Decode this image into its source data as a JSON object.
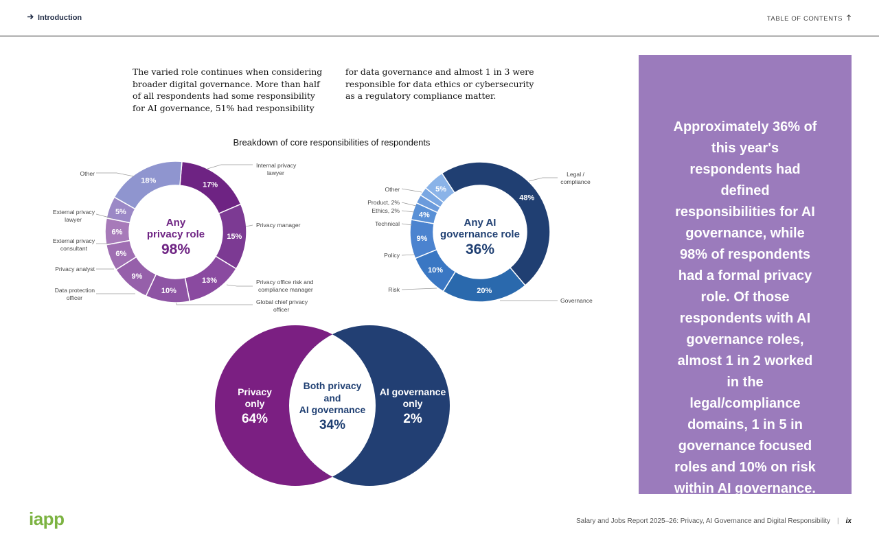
{
  "header": {
    "back_link": "Introduction",
    "toc_label": "TABLE OF CONTENTS"
  },
  "intro": {
    "col1": "The varied role continues when considering broader digital governance. More than half of all respondents had some responsibility for AI governance, 51% had responsibility",
    "col2": "for data governance and almost 1 in 3 were responsible for data ethics or cybersecurity as a regulatory compliance matter."
  },
  "chart_data": [
    {
      "type": "donut",
      "title": "Breakdown of core responsibilities of respondents",
      "center_label_line1": "Any",
      "center_label_line2": "privacy role",
      "center_value": "98%",
      "series": [
        {
          "name": "Internal privacy lawyer",
          "value": 17,
          "label": "17%",
          "color": "#6e2383"
        },
        {
          "name": "Privacy manager",
          "value": 15,
          "label": "15%",
          "color": "#7c3a93"
        },
        {
          "name": "Privacy office risk and compliance manager",
          "value": 13,
          "label": "13%",
          "color": "#8a4aa0"
        },
        {
          "name": "Global chief privacy officer",
          "value": 10,
          "label": "10%",
          "color": "#8e54a4"
        },
        {
          "name": "Data protection officer",
          "value": 9,
          "label": "9%",
          "color": "#9660aa"
        },
        {
          "name": "Privacy analyst",
          "value": 6,
          "label": "6%",
          "color": "#9f6eb2"
        },
        {
          "name": "External privacy consultant",
          "value": 6,
          "label": "6%",
          "color": "#a77ab9"
        },
        {
          "name": "External privacy lawyer",
          "value": 5,
          "label": "5%",
          "color": "#9b88c6"
        },
        {
          "name": "Other",
          "value": 18,
          "label": "18%",
          "color": "#8f95cf"
        }
      ]
    },
    {
      "type": "donut",
      "center_label_line1": "Any AI",
      "center_label_line2": "governance role",
      "center_value": "36%",
      "series": [
        {
          "name": "Legal / compliance",
          "value": 48,
          "label": "48%",
          "color": "#203f72"
        },
        {
          "name": "Governance",
          "value": 20,
          "label": "20%",
          "color": "#2a69ad"
        },
        {
          "name": "Risk",
          "value": 10,
          "label": "10%",
          "color": "#3a77c3"
        },
        {
          "name": "Policy",
          "value": 9,
          "label": "9%",
          "color": "#4b83cf"
        },
        {
          "name": "Technical",
          "value": 4,
          "label": "4%",
          "color": "#5990d6"
        },
        {
          "name": "Ethics, 2%",
          "value": 2,
          "label": "",
          "color": "#6b9bdc"
        },
        {
          "name": "Product, 2%",
          "value": 2,
          "label": "",
          "color": "#7aa7e2"
        },
        {
          "name": "Other",
          "value": 5,
          "label": "5%",
          "color": "#8ab3e8"
        }
      ]
    },
    {
      "type": "venn",
      "left": {
        "line1": "Privacy",
        "line2": "only",
        "value": "64%",
        "color": "#7b1f82"
      },
      "overlap": {
        "line1": "Both privacy",
        "line2": "and",
        "line3": "AI governance",
        "value": "34%",
        "color": "#1f3f72"
      },
      "right": {
        "line1": "AI governance",
        "line2": "only",
        "value": "2%",
        "color": "#223f73"
      }
    }
  ],
  "callout": {
    "text": "Approximately 36% of this year's respondents had defined responsibilities for AI governance, while 98% of respondents had a formal privacy role. Of those respondents with AI governance roles, almost 1 in 2 worked in the legal/compliance domains, 1 in 5 in governance focused roles and 10% on risk within AI governance."
  },
  "footer": {
    "logo": "iapp",
    "report_title": "Salary and Jobs Report 2025–26: Privacy, AI Governance and Digital Responsibility",
    "separator": "|",
    "page": "ix"
  }
}
